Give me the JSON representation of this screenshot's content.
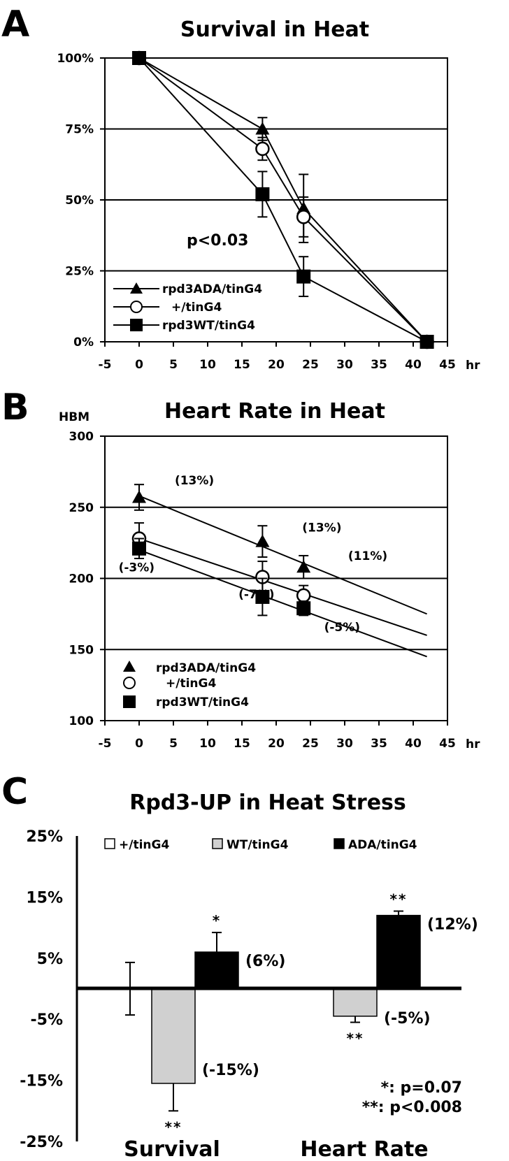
{
  "chart_data": [
    {
      "panel": "A",
      "type": "line",
      "title": "Survival in Heat",
      "xlabel": "hr",
      "ylabel": "",
      "xlim": [
        -5,
        45
      ],
      "ylim": [
        0,
        100
      ],
      "x_ticks": [
        "-5",
        "0",
        "5",
        "10",
        "15",
        "20",
        "25",
        "30",
        "35",
        "40",
        "45"
      ],
      "y_ticks": [
        "0%",
        "25%",
        "50%",
        "75%",
        "100%"
      ],
      "series": [
        {
          "name": "rpd3ADA/tinG4",
          "marker": "triangle",
          "x": [
            0,
            18,
            24,
            42
          ],
          "y": [
            100,
            75,
            47,
            0
          ],
          "err": [
            0,
            4,
            12,
            0
          ]
        },
        {
          "name": "+/tinG4",
          "marker": "circle",
          "x": [
            0,
            18,
            24,
            42
          ],
          "y": [
            100,
            68,
            44,
            0
          ],
          "err": [
            0,
            4,
            7,
            0
          ]
        },
        {
          "name": "rpd3WT/tinG4",
          "marker": "square",
          "x": [
            0,
            18,
            24,
            42
          ],
          "y": [
            100,
            52,
            23,
            0
          ],
          "err": [
            0,
            8,
            7,
            0
          ]
        }
      ],
      "annotations": [
        {
          "text": "p<0.03",
          "x": 10,
          "y": 36
        }
      ]
    },
    {
      "panel": "B",
      "type": "scatter",
      "title": "Heart Rate in Heat",
      "xlabel": "hr",
      "ylabel": "HBM",
      "xlim": [
        -5,
        45
      ],
      "ylim": [
        100,
        300
      ],
      "x_ticks": [
        "-5",
        "0",
        "5",
        "10",
        "15",
        "20",
        "25",
        "30",
        "35",
        "40",
        "45"
      ],
      "y_ticks": [
        "100",
        "150",
        "200",
        "250",
        "300"
      ],
      "series": [
        {
          "name": "rpd3ADA/tinG4",
          "marker": "triangle",
          "x": [
            0,
            18,
            24
          ],
          "y": [
            257,
            226,
            208
          ],
          "err": [
            9,
            11,
            8
          ],
          "trend": [
            [
              0,
              258
            ],
            [
              42,
              175
            ]
          ]
        },
        {
          "name": "+/tinG4",
          "marker": "circle",
          "x": [
            0,
            18,
            24
          ],
          "y": [
            228,
            201,
            188
          ],
          "err": [
            11,
            11,
            7
          ],
          "trend": [
            [
              0,
              228
            ],
            [
              42,
              160
            ]
          ]
        },
        {
          "name": "rpd3WT/tinG4",
          "marker": "square",
          "x": [
            0,
            18,
            24
          ],
          "y": [
            221,
            187,
            179
          ],
          "err": [
            7,
            13,
            5
          ],
          "trend": [
            [
              0,
              220
            ],
            [
              42,
              145
            ]
          ]
        }
      ],
      "annotations": [
        {
          "text": "(13%)",
          "x": 5.2,
          "y": 266
        },
        {
          "text": "(13%)",
          "x": 23.8,
          "y": 233
        },
        {
          "text": "(11%)",
          "x": 30.5,
          "y": 213
        },
        {
          "text": "(-3%)",
          "x": -3,
          "y": 205
        },
        {
          "text": "(-7%)",
          "x": 14.5,
          "y": 186
        },
        {
          "text": "(-5%)",
          "x": 27,
          "y": 163
        }
      ]
    },
    {
      "panel": "C",
      "type": "bar",
      "title": "Rpd3-UP in Heat Stress",
      "xlabel": "",
      "ylabel": "",
      "ylim": [
        -25,
        25
      ],
      "y_ticks": [
        "-25%",
        "-15%",
        "-5%",
        "5%",
        "15%",
        "25%"
      ],
      "categories": [
        "Survival",
        "Heart Rate"
      ],
      "series": [
        {
          "name": "+/tinG4",
          "color": "#ffffff",
          "values": [
            0,
            0
          ],
          "err": [
            4.3,
            0
          ],
          "labels": [
            "",
            ""
          ],
          "sig": [
            "",
            ""
          ]
        },
        {
          "name": "WT/tinG4",
          "color": "#d0d0d0",
          "values": [
            -15.5,
            -4.5
          ],
          "err": [
            4.5,
            1.0
          ],
          "labels": [
            "(-15%)",
            "(-5%)"
          ],
          "sig": [
            "**",
            "**"
          ]
        },
        {
          "name": "ADA/tinG4",
          "color": "#000000",
          "values": [
            6,
            12
          ],
          "err": [
            3.2,
            0.7
          ],
          "labels": [
            "(6%)",
            "(12%)"
          ],
          "sig": [
            "*",
            "**"
          ]
        }
      ],
      "footnotes": [
        "*: p=0.07",
        "**: p<0.008"
      ]
    }
  ],
  "panel_letters": [
    "A",
    "B",
    "C"
  ]
}
